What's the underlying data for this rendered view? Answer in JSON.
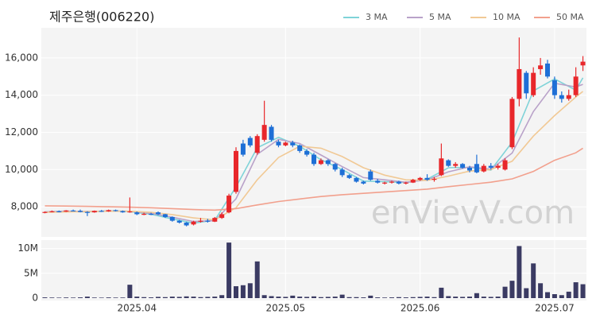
{
  "chart_data": {
    "type": "candlestick",
    "title": "제주은행(006220)",
    "watermark": "enVievV.com",
    "up_color": "#e8272b",
    "down_color": "#1e6fd6",
    "xlim": [
      -0.5,
      76.5
    ],
    "xticks": [
      {
        "value": 13,
        "label": "2025.04"
      },
      {
        "value": 34,
        "label": "2025.05"
      },
      {
        "value": 53,
        "label": "2025.06"
      },
      {
        "value": 72,
        "label": "2025.07"
      }
    ],
    "ylim": [
      6380,
      17620
    ],
    "yticks": [
      {
        "value": 8000,
        "label": "8,000"
      },
      {
        "value": 10000,
        "label": "10,000"
      },
      {
        "value": 12000,
        "label": "12,000"
      },
      {
        "value": 14000,
        "label": "14,000"
      },
      {
        "value": 16000,
        "label": "16,000"
      }
    ],
    "ohlc": [
      [
        7700,
        7750,
        7650,
        7720
      ],
      [
        7720,
        7800,
        7700,
        7760
      ],
      [
        7760,
        7800,
        7700,
        7740
      ],
      [
        7740,
        7820,
        7720,
        7800
      ],
      [
        7800,
        7850,
        7750,
        7780
      ],
      [
        7780,
        7850,
        7700,
        7720
      ],
      [
        7720,
        7760,
        7500,
        7700
      ],
      [
        7700,
        7800,
        7680,
        7780
      ],
      [
        7780,
        7830,
        7720,
        7750
      ],
      [
        7750,
        7850,
        7730,
        7820
      ],
      [
        7820,
        7850,
        7750,
        7770
      ],
      [
        7770,
        7800,
        7680,
        7700
      ],
      [
        7700,
        8500,
        7680,
        7750
      ],
      [
        7700,
        7750,
        7550,
        7600
      ],
      [
        7600,
        7680,
        7550,
        7620
      ],
      [
        7620,
        7680,
        7550,
        7580
      ],
      [
        7700,
        7750,
        7550,
        7600
      ],
      [
        7600,
        7620,
        7400,
        7450
      ],
      [
        7450,
        7480,
        7200,
        7250
      ],
      [
        7250,
        7300,
        7100,
        7150
      ],
      [
        7150,
        7180,
        6950,
        7000
      ],
      [
        7050,
        7250,
        7000,
        7200
      ],
      [
        7200,
        7400,
        7150,
        7250
      ],
      [
        7250,
        7350,
        7150,
        7200
      ],
      [
        7200,
        7450,
        7180,
        7400
      ],
      [
        7400,
        7700,
        7350,
        7600
      ],
      [
        7700,
        8700,
        7650,
        8600
      ],
      [
        8800,
        11200,
        8700,
        11000
      ],
      [
        11400,
        11600,
        10700,
        10800
      ],
      [
        11700,
        11800,
        11200,
        11300
      ],
      [
        10900,
        11900,
        10800,
        11800
      ],
      [
        11600,
        13700,
        11500,
        12400
      ],
      [
        12300,
        12400,
        11500,
        11600
      ],
      [
        11500,
        11600,
        11200,
        11300
      ],
      [
        11300,
        11500,
        11250,
        11450
      ],
      [
        11450,
        11550,
        11200,
        11300
      ],
      [
        11300,
        11350,
        10900,
        11000
      ],
      [
        11000,
        11100,
        10700,
        10800
      ],
      [
        10800,
        10900,
        10200,
        10300
      ],
      [
        10300,
        10600,
        10250,
        10500
      ],
      [
        10500,
        10550,
        10200,
        10300
      ],
      [
        10300,
        10350,
        9900,
        10000
      ],
      [
        10000,
        10100,
        9600,
        9700
      ],
      [
        9700,
        9750,
        9500,
        9550
      ],
      [
        9550,
        9600,
        9300,
        9350
      ],
      [
        9350,
        9400,
        9200,
        9250
      ],
      [
        9900,
        10000,
        9400,
        9450
      ],
      [
        9400,
        9500,
        9250,
        9300
      ],
      [
        9300,
        9350,
        9200,
        9300
      ],
      [
        9300,
        9400,
        9250,
        9350
      ],
      [
        9350,
        9400,
        9200,
        9250
      ],
      [
        9250,
        9350,
        9200,
        9300
      ],
      [
        9300,
        9500,
        9280,
        9450
      ],
      [
        9450,
        9600,
        9400,
        9550
      ],
      [
        9550,
        9750,
        9400,
        9450
      ],
      [
        9450,
        9600,
        9350,
        9500
      ],
      [
        9700,
        11400,
        9650,
        10600
      ],
      [
        10500,
        10550,
        10150,
        10200
      ],
      [
        10200,
        10400,
        10100,
        10300
      ],
      [
        10300,
        10350,
        10050,
        10100
      ],
      [
        10100,
        10200,
        9850,
        9950
      ],
      [
        10300,
        10800,
        9800,
        9850
      ],
      [
        9900,
        10300,
        9850,
        10200
      ],
      [
        10200,
        10350,
        10000,
        10100
      ],
      [
        10100,
        10300,
        10000,
        10200
      ],
      [
        10000,
        10600,
        9950,
        10500
      ],
      [
        11200,
        13900,
        11100,
        13800
      ],
      [
        13800,
        17100,
        13400,
        15400
      ],
      [
        15200,
        15300,
        13800,
        14100
      ],
      [
        14000,
        15500,
        13900,
        15200
      ],
      [
        15400,
        16000,
        15100,
        15600
      ],
      [
        15700,
        15900,
        14900,
        15000
      ],
      [
        14800,
        15000,
        13800,
        14000
      ],
      [
        14000,
        14200,
        13600,
        13800
      ],
      [
        13800,
        14300,
        13700,
        14000
      ],
      [
        14000,
        15500,
        13900,
        15000
      ],
      [
        15600,
        16100,
        15300,
        15800
      ]
    ],
    "ma": [
      {
        "name": "3 MA",
        "color": "#7fd3d8",
        "x": [
          0,
          3,
          6,
          9,
          12,
          15,
          18,
          21,
          24,
          27,
          30,
          33,
          36,
          39,
          42,
          45,
          48,
          51,
          54,
          57,
          60,
          63,
          66,
          69,
          72,
          75,
          76
        ],
        "values": [
          7720,
          7770,
          7720,
          7780,
          7740,
          7600,
          7350,
          7120,
          7280,
          9070,
          11170,
          11730,
          11250,
          10530,
          10000,
          9380,
          9350,
          9300,
          9480,
          10100,
          10120,
          9970,
          11470,
          14230,
          14870,
          14270,
          14930
        ]
      },
      {
        "name": "5 MA",
        "color": "#b9a2c9",
        "x": [
          0,
          3,
          6,
          9,
          12,
          15,
          18,
          21,
          24,
          27,
          30,
          33,
          36,
          39,
          42,
          45,
          48,
          51,
          54,
          57,
          60,
          63,
          66,
          69,
          72,
          75,
          76
        ],
        "values": [
          7720,
          7760,
          7750,
          7770,
          7760,
          7650,
          7440,
          7210,
          7250,
          8430,
          10820,
          11620,
          11400,
          10780,
          10160,
          9570,
          9450,
          9320,
          9440,
          9880,
          10150,
          10020,
          10890,
          13120,
          14640,
          14440,
          14580
        ]
      },
      {
        "name": "10 MA",
        "color": "#f1c995",
        "x": [
          0,
          3,
          6,
          9,
          12,
          15,
          18,
          21,
          24,
          27,
          30,
          33,
          36,
          39,
          42,
          45,
          48,
          51,
          54,
          57,
          60,
          63,
          66,
          69,
          72,
          75,
          76
        ],
        "values": [
          7700,
          7720,
          7740,
          7760,
          7760,
          7700,
          7580,
          7400,
          7300,
          7950,
          9450,
          10650,
          11250,
          11150,
          10700,
          10100,
          9700,
          9450,
          9420,
          9650,
          9920,
          10000,
          10450,
          11800,
          12900,
          13900,
          14200
        ]
      },
      {
        "name": "50 MA",
        "color": "#f2a08d",
        "x": [
          0,
          3,
          6,
          9,
          12,
          15,
          18,
          21,
          24,
          27,
          30,
          33,
          36,
          39,
          42,
          45,
          48,
          51,
          54,
          57,
          60,
          63,
          66,
          69,
          72,
          75,
          76
        ],
        "values": [
          8050,
          8040,
          8020,
          8000,
          7980,
          7950,
          7900,
          7850,
          7820,
          7900,
          8100,
          8280,
          8420,
          8550,
          8650,
          8720,
          8800,
          8870,
          8950,
          9080,
          9200,
          9320,
          9500,
          9900,
          10500,
          10900,
          11150
        ]
      }
    ],
    "volume": {
      "color": "#3b3b63",
      "ylim": [
        0,
        11700000
      ],
      "yticks": [
        {
          "value": 0,
          "label": "0"
        },
        {
          "value": 5000000,
          "label": "5M"
        },
        {
          "value": 10000000,
          "label": "10M"
        }
      ],
      "values": [
        150000,
        120000,
        100000,
        130000,
        110000,
        150000,
        300000,
        120000,
        100000,
        140000,
        110000,
        120000,
        2700000,
        300000,
        200000,
        150000,
        250000,
        200000,
        300000,
        250000,
        350000,
        300000,
        200000,
        250000,
        300000,
        600000,
        11200000,
        2400000,
        2600000,
        3000000,
        7400000,
        600000,
        400000,
        300000,
        250000,
        500000,
        300000,
        250000,
        350000,
        200000,
        250000,
        300000,
        700000,
        200000,
        200000,
        150000,
        500000,
        150000,
        120000,
        150000,
        200000,
        150000,
        200000,
        250000,
        300000,
        200000,
        2100000,
        400000,
        300000,
        250000,
        300000,
        1000000,
        300000,
        250000,
        300000,
        2300000,
        3500000,
        10500000,
        2000000,
        7000000,
        3000000,
        1200000,
        800000,
        600000,
        1300000,
        3200000,
        2800000
      ]
    }
  }
}
